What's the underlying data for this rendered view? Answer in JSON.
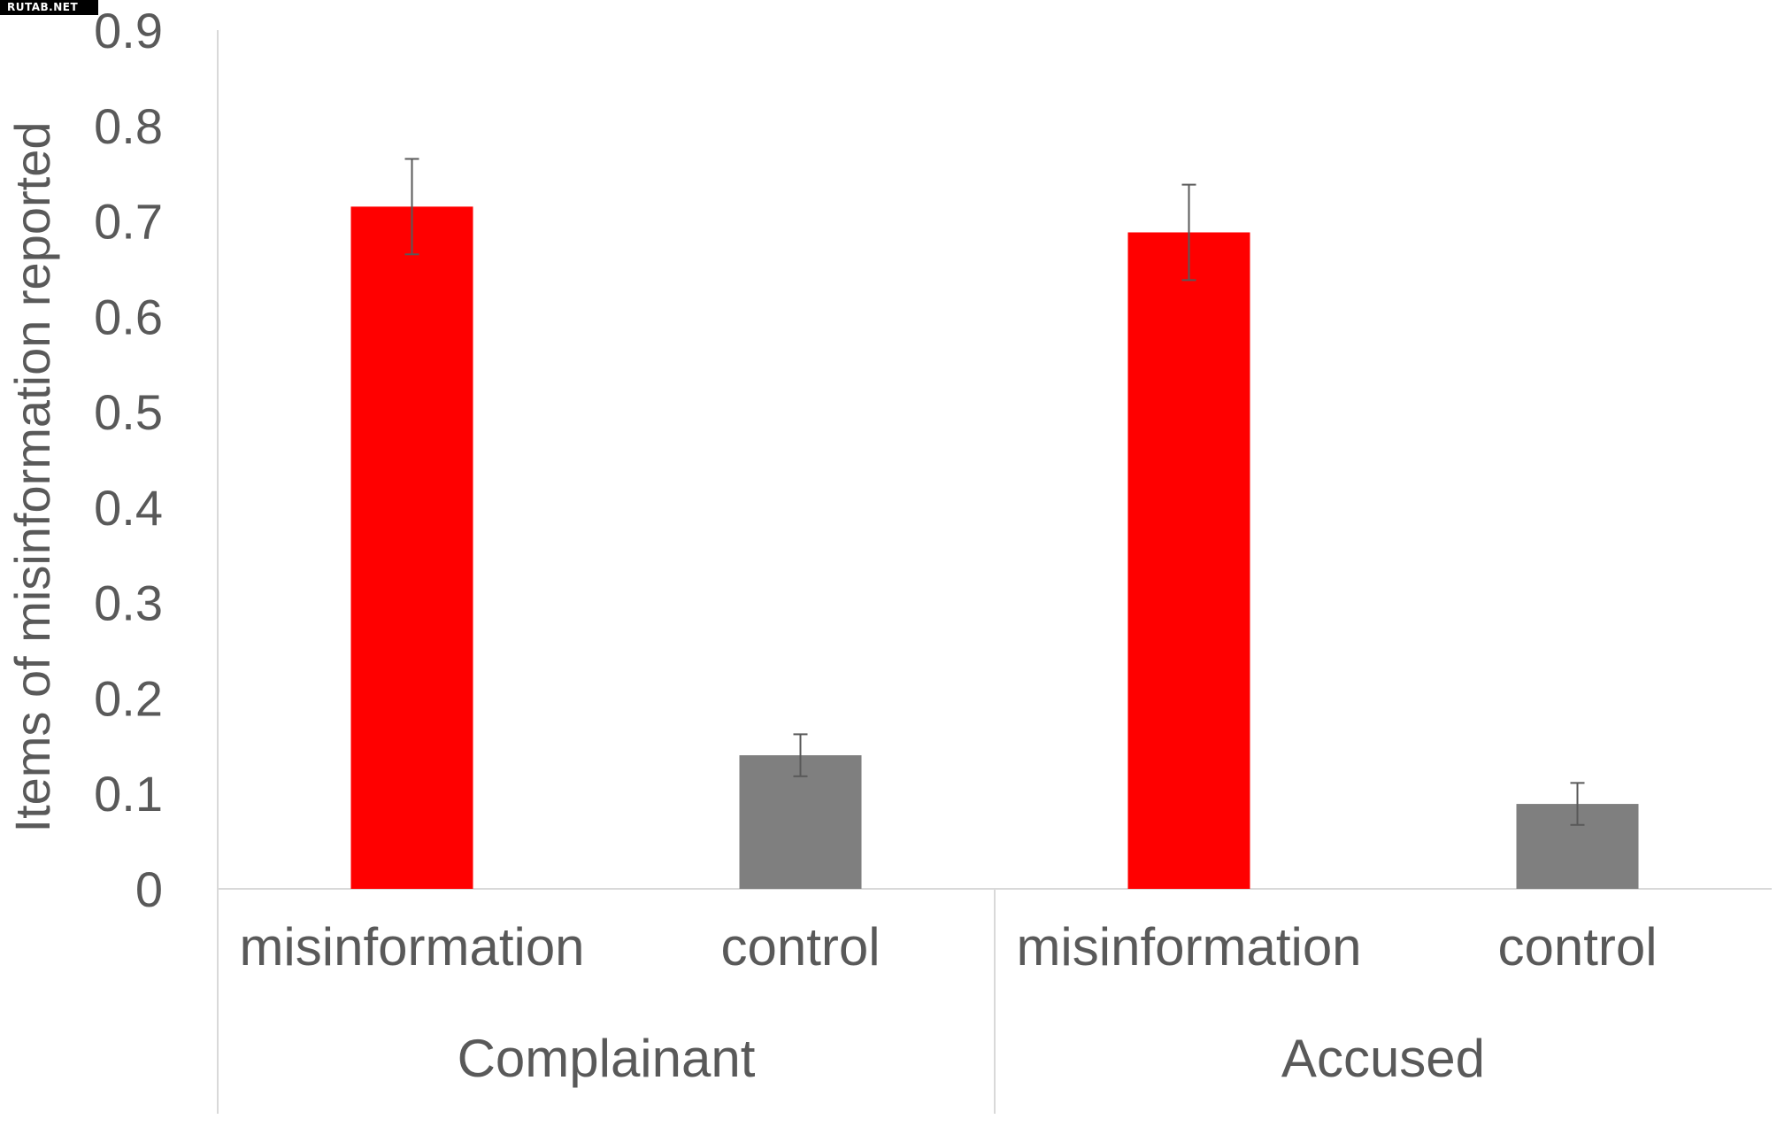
{
  "watermark": "RUTAB.NET",
  "chart_data": {
    "type": "bar",
    "ylabel": "Items of misinformation reported",
    "ylim": [
      0,
      0.9
    ],
    "y_ticks": [
      "0",
      "0.1",
      "0.2",
      "0.3",
      "0.4",
      "0.5",
      "0.6",
      "0.7",
      "0.8",
      "0.9"
    ],
    "grid": false,
    "groups": [
      {
        "label": "Complainant",
        "bars": [
          {
            "category": "misinformation",
            "value": 0.715,
            "error": 0.05,
            "color": "#ff0000"
          },
          {
            "category": "control",
            "value": 0.14,
            "error": 0.022,
            "color": "#7f7f7f"
          }
        ]
      },
      {
        "label": "Accused",
        "bars": [
          {
            "category": "misinformation",
            "value": 0.688,
            "error": 0.05,
            "color": "#ff0000"
          },
          {
            "category": "control",
            "value": 0.089,
            "error": 0.022,
            "color": "#7f7f7f"
          }
        ]
      }
    ]
  }
}
